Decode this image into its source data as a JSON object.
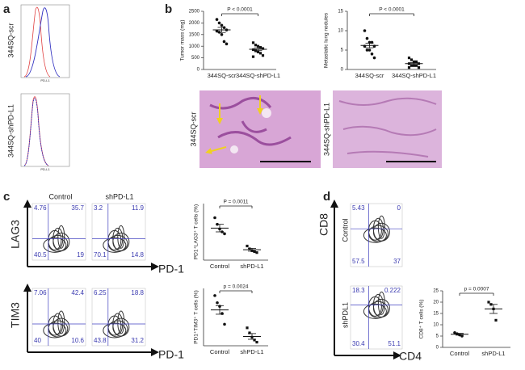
{
  "panel_a": {
    "letter": "a",
    "xlabel": "PD-L1",
    "rows": [
      {
        "label": "344SQ-scr"
      },
      {
        "label": "344SQ-shPD-L1"
      }
    ]
  },
  "panel_b": {
    "letter": "b",
    "plots": [
      {
        "ylabel": "Tumor mass (mg)",
        "p_value": "P < 0.0001",
        "categories": [
          "344SQ-scr",
          "344SQ-shPD-L1"
        ],
        "ylim": [
          0,
          2500
        ],
        "yticks": [
          0,
          500,
          1000,
          1500,
          2000,
          2500
        ],
        "groups": [
          {
            "values": [
              2150,
              2000,
              1900,
              1800,
              1700,
              1650,
              1600,
              1500,
              1200,
              1100
            ],
            "mean": 1700,
            "sem": 110
          },
          {
            "values": [
              1150,
              1050,
              1000,
              950,
              900,
              850,
              800,
              750,
              700,
              600,
              550
            ],
            "mean": 870,
            "sem": 60
          }
        ]
      },
      {
        "ylabel": "Metastatic lung nodules",
        "p_value": "P < 0.0001",
        "categories": [
          "344SQ-scr",
          "344SQ-shPD-L1"
        ],
        "ylim": [
          0,
          15
        ],
        "yticks": [
          0,
          5,
          10,
          15
        ],
        "groups": [
          {
            "values": [
              10,
              8,
              7,
              7,
              6,
              6,
              5,
              5,
              4,
              3
            ],
            "mean": 6.2,
            "sem": 0.6
          },
          {
            "values": [
              3,
              2.5,
              2,
              2,
              1.5,
              1.5,
              1,
              1,
              1,
              0.5,
              0.5
            ],
            "mean": 1.5,
            "sem": 0.25
          }
        ]
      }
    ],
    "images": [
      {
        "label": "344SQ-scr"
      },
      {
        "label": "344SQ-shPD-L1"
      }
    ]
  },
  "panel_c": {
    "letter": "c",
    "columns": [
      "Control",
      "shPD-L1"
    ],
    "rows": [
      {
        "ylabel": "LAG3",
        "xlabel": "PD-1",
        "flows": [
          {
            "quadrants": [
              "4.76",
              "35.7",
              "40.5",
              "19"
            ]
          },
          {
            "quadrants": [
              "3.2",
              "11.9",
              "70.1",
              "14.8"
            ]
          }
        ],
        "plot": {
          "ylabel": "PD1⁺LAG3⁺ T cells (%)",
          "p_value": "P = 0.0011",
          "categories": [
            "Control",
            "shPD-L1"
          ],
          "ylim": [
            0,
            60
          ],
          "groups": [
            {
              "values": [
                45,
                38,
                33,
                30,
                28
              ],
              "mean": 34,
              "sem": 4
            },
            {
              "values": [
                15,
                12,
                10,
                9,
                8
              ],
              "mean": 11,
              "sem": 1.5
            }
          ]
        }
      },
      {
        "ylabel": "TIM3",
        "xlabel": "PD-1",
        "flows": [
          {
            "quadrants": [
              "7.06",
              "42.4",
              "40",
              "10.6"
            ]
          },
          {
            "quadrants": [
              "6.25",
              "18.8",
              "43.8",
              "31.2"
            ]
          }
        ],
        "plot": {
          "ylabel": "PD1⁺TIM3⁺ T cells (%)",
          "p_value": "p = 0.0024",
          "categories": [
            "Control",
            "shPD-L1"
          ],
          "ylim": [
            0,
            80
          ],
          "groups": [
            {
              "values": [
                70,
                60,
                55,
                45,
                30
              ],
              "mean": 50,
              "sem": 6
            },
            {
              "values": [
                25,
                18,
                12,
                8,
                5
              ],
              "mean": 13,
              "sem": 4
            }
          ]
        }
      }
    ]
  },
  "panel_d": {
    "letter": "d",
    "ylabel": "CD8",
    "xlabel": "CD4",
    "flows": [
      {
        "label": "Control",
        "quadrants": [
          "5.43",
          "0",
          "57.5",
          "37"
        ]
      },
      {
        "label": "shPDL1",
        "quadrants": [
          "18.3",
          "0.222",
          "30.4",
          "51.1"
        ]
      }
    ],
    "plot": {
      "ylabel": "CD8⁺ T cells (%)",
      "p_value": "p = 0.0007",
      "categories": [
        "Control",
        "shPD-L1"
      ],
      "ylim": [
        0,
        25
      ],
      "yticks": [
        0,
        5,
        10,
        15,
        20,
        25
      ],
      "groups": [
        {
          "values": [
            6.5,
            6,
            5.5,
            5
          ],
          "mean": 5.8,
          "sem": 0.4
        },
        {
          "values": [
            20,
            19,
            17,
            12
          ],
          "mean": 17,
          "sem": 2
        }
      ]
    }
  }
}
